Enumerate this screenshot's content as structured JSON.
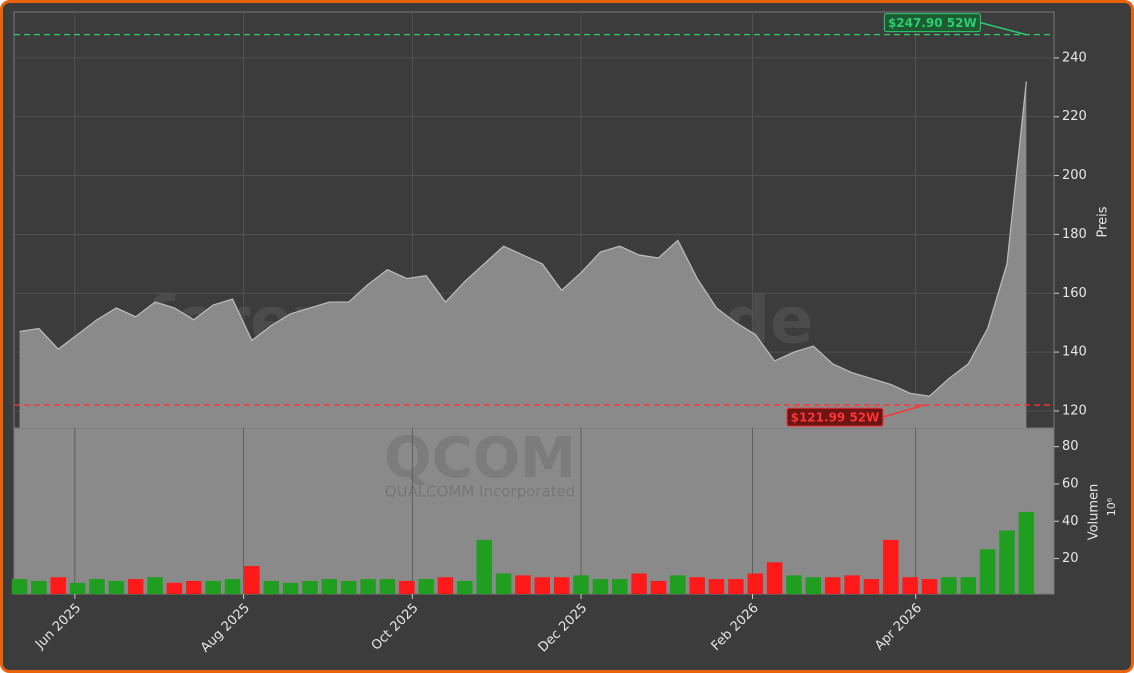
{
  "chart_data": [
    {
      "type": "area",
      "ylabel": "Preis",
      "watermark": "forexsignale.trade",
      "symbol": "QCOM",
      "company": "QUALCOMM Incorporated",
      "color": "#8a8a8a",
      "line_color": "#bdbdbd",
      "x": [
        "2025-05-12",
        "2025-05-19",
        "2025-05-26",
        "2025-06-02",
        "2025-06-09",
        "2025-06-16",
        "2025-06-23",
        "2025-06-30",
        "2025-07-07",
        "2025-07-14",
        "2025-07-21",
        "2025-07-28",
        "2025-08-04",
        "2025-08-11",
        "2025-08-18",
        "2025-08-25",
        "2025-09-01",
        "2025-09-08",
        "2025-09-15",
        "2025-09-22",
        "2025-09-29",
        "2025-10-06",
        "2025-10-13",
        "2025-10-20",
        "2025-10-27",
        "2025-11-03",
        "2025-11-10",
        "2025-11-17",
        "2025-11-24",
        "2025-12-01",
        "2025-12-08",
        "2025-12-15",
        "2025-12-22",
        "2025-12-29",
        "2026-01-05",
        "2026-01-12",
        "2026-01-19",
        "2026-01-26",
        "2026-02-02",
        "2026-02-09",
        "2026-02-16",
        "2026-02-23",
        "2026-03-02",
        "2026-03-09",
        "2026-03-16",
        "2026-03-23",
        "2026-03-30",
        "2026-04-06",
        "2026-04-13",
        "2026-04-20",
        "2026-04-27",
        "2026-05-04",
        "2026-05-11"
      ],
      "values": [
        147,
        148,
        141,
        146,
        151,
        155,
        152,
        157,
        155,
        151,
        156,
        158,
        144,
        149,
        153,
        155,
        157,
        157,
        163,
        168,
        165,
        166,
        157,
        164,
        170,
        176,
        173,
        170,
        161,
        167,
        174,
        176,
        173,
        172,
        178,
        165,
        155,
        150,
        146,
        137,
        140,
        142,
        136,
        133,
        131,
        129,
        126,
        125,
        131,
        136,
        148,
        170,
        232
      ],
      "xlim": [
        "2025-05-10",
        "2026-05-21"
      ],
      "xticks": [
        {
          "value": "2025-06-01",
          "label": "Jun 2025"
        },
        {
          "value": "2025-08-01",
          "label": "Aug 2025"
        },
        {
          "value": "2025-10-01",
          "label": "Oct 2025"
        },
        {
          "value": "2025-12-01",
          "label": "Dec 2025"
        },
        {
          "value": "2026-02-01",
          "label": "Feb 2026"
        },
        {
          "value": "2026-04-01",
          "label": "Apr 2026"
        }
      ],
      "ylim": [
        114.2,
        255.6
      ],
      "yticks": [
        120,
        140,
        160,
        180,
        200,
        220,
        240
      ],
      "grid": true,
      "annotations": [
        {
          "label": "$247.90 52W",
          "value": 247.9,
          "x": "2026-05-11",
          "color": "#2ecc71",
          "box": "#1d5c33"
        },
        {
          "label": "$121.99 52W",
          "value": 121.99,
          "x": "2026-04-04",
          "color": "#ff3333",
          "box": "#6b1515"
        }
      ]
    },
    {
      "type": "bar",
      "ylabel": "Volumen",
      "unit": "10⁶",
      "values": [
        9,
        8,
        10,
        7,
        9,
        8,
        9,
        10,
        7,
        8,
        8,
        9,
        16,
        8,
        7,
        8,
        9,
        8,
        9,
        9,
        8,
        9,
        10,
        8,
        30,
        12,
        11,
        10,
        10,
        11,
        9,
        9,
        12,
        8,
        11,
        10,
        9,
        9,
        12,
        18,
        11,
        10,
        10,
        11,
        9,
        30,
        10,
        9,
        10,
        10,
        25,
        35,
        45
      ],
      "up_color": "#1f9e1f",
      "down_color": "#ff1a1a",
      "ylim": [
        1,
        90
      ],
      "yticks": [
        20,
        40,
        60,
        80
      ]
    }
  ]
}
